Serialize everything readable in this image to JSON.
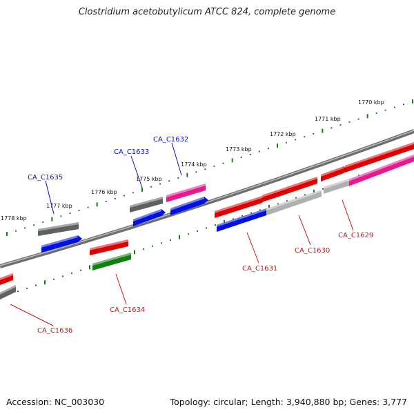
{
  "title": "Clostridium acetobutylicum ATCC 824, complete genome",
  "footer": {
    "accession": "Accession: NC_003030",
    "stats": "Topology: circular; Length: 3,940,880 bp; Genes: 3,777"
  },
  "colors": {
    "backbone": "#808080",
    "ticks": "#1a7a1a",
    "label_forward": "#1010c0",
    "label_reverse": "#d01010",
    "red": "#e00000",
    "blue": "#0010e0",
    "gray": "#606060",
    "light_gray": "#b0b0b0",
    "green": "#108010",
    "pink": "#e81890"
  },
  "scale_labels": [
    "1770 kbp",
    "1771 kbp",
    "1772 kbp",
    "1773 kbp",
    "1774 kbp",
    "1775 kbp",
    "1776 kbp",
    "1777 kbp",
    "1778 kbp"
  ],
  "gene_labels": [
    "CA_C1632",
    "CA_C1633",
    "CA_C1635",
    "CA_C1629",
    "CA_C1630",
    "CA_C1631",
    "CA_C1634",
    "CA_C1636"
  ]
}
